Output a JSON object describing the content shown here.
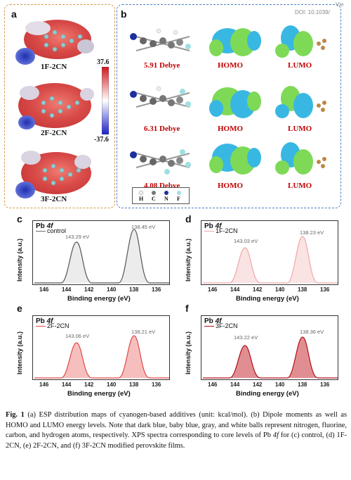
{
  "watermark": {
    "line1": "Vie",
    "line2": "DOI: 10.1039/"
  },
  "panel_a": {
    "letter": "a",
    "molecules": [
      "1F-2CN",
      "2F-2CN",
      "3F-2CN"
    ],
    "colorbar": {
      "max": "37.6",
      "min": "-37.6"
    }
  },
  "panel_b": {
    "letter": "b",
    "dipoles": [
      "5.91 Debye",
      "6.31 Debye",
      "4.08 Debye"
    ],
    "homo_label": "HOMO",
    "lumo_label": "LUMO",
    "legend_atoms": [
      "H",
      "C",
      "N",
      "F"
    ]
  },
  "xps": [
    {
      "letter": "c",
      "title_el": "Pb",
      "title_orb": "4f",
      "legend": "control",
      "color": "#6e6e6e",
      "peaks": [
        "143.29 eV",
        "138.45 eV"
      ],
      "ylabel": "Intensity (a.u.)",
      "xlabel": "Binding energy (eV)",
      "ticks": [
        "146",
        "144",
        "142",
        "140",
        "138",
        "136"
      ]
    },
    {
      "letter": "d",
      "title_el": "Pb",
      "title_orb": "4f",
      "legend": "1F-2CN",
      "color": "#f2a6a6",
      "peaks": [
        "143.03 eV",
        "138.23 eV"
      ],
      "ylabel": "Intensity (a.u.)",
      "xlabel": "Binding energy (eV)",
      "ticks": [
        "146",
        "144",
        "142",
        "140",
        "138",
        "136"
      ]
    },
    {
      "letter": "e",
      "title_el": "Pb",
      "title_orb": "4f",
      "legend": "2F-2CN",
      "color": "#e04848",
      "peaks": [
        "143.06 eV",
        "138.21 eV"
      ],
      "ylabel": "Intensity (a.u.)",
      "xlabel": "Binding energy (eV)",
      "ticks": [
        "146",
        "144",
        "142",
        "140",
        "138",
        "136"
      ]
    },
    {
      "letter": "f",
      "title_el": "Pb",
      "title_orb": "4f",
      "legend": "3F-2CN",
      "color": "#b00f1a",
      "peaks": [
        "143.22 eV",
        "138.36 eV"
      ],
      "ylabel": "Intensity (a.u.)",
      "xlabel": "Binding energy (eV)",
      "ticks": [
        "146",
        "144",
        "142",
        "140",
        "138",
        "136"
      ]
    }
  ],
  "caption": {
    "fig": "Fig. 1",
    "text_1": " (a) ESP distribution maps of cyanogen-based additives (unit: kcal/mol). (b) Dipole moments as well as HOMO and LUMO energy levels. Note that dark blue, baby blue, gray, and white balls represent nitrogen, fluorine, carbon, and hydrogen atoms, respectively. XPS spectra corresponding to core levels of Pb ",
    "orb": "4f",
    "text_2": " for (c) control, (d) 1F-2CN, (e) 2F-2CN, and (f) 3F-2CN modified perovskite films."
  }
}
